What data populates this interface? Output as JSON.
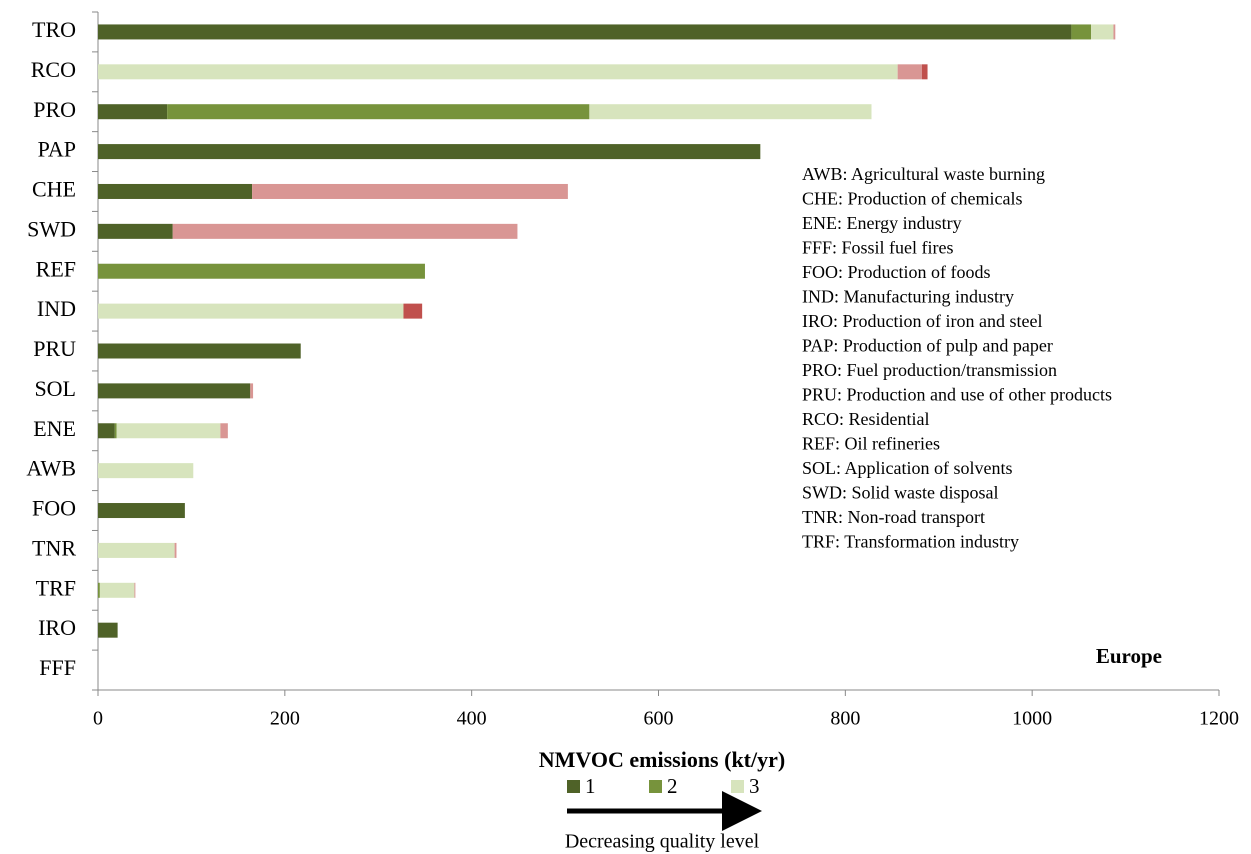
{
  "chart_data": {
    "type": "stacked-bar-horizontal",
    "x_label": "NMVOC emissions (kt/yr)",
    "annotation": "Europe",
    "arrow_label": "Decreasing quality level",
    "categories": [
      "TRO",
      "RCO",
      "PRO",
      "PAP",
      "CHE",
      "SWD",
      "REF",
      "IND",
      "PRU",
      "SOL",
      "ENE",
      "AWB",
      "FOO",
      "TNR",
      "TRF",
      "IRO",
      "FFF"
    ],
    "series": [
      {
        "name": "1",
        "color": "#4f6228",
        "values": [
          1042,
          0,
          74,
          709,
          165,
          80,
          0,
          0,
          217,
          163,
          18,
          0,
          93,
          0,
          0,
          21,
          0
        ]
      },
      {
        "name": "2",
        "color": "#77933c",
        "values": [
          21,
          0,
          452,
          0,
          0,
          0,
          350,
          0,
          0,
          0,
          2,
          0,
          0,
          0,
          2,
          0,
          0
        ]
      },
      {
        "name": "3",
        "color": "#d7e4bd",
        "values": [
          24,
          856,
          302,
          0,
          0,
          0,
          0,
          327,
          0,
          0,
          111,
          102,
          0,
          82,
          37,
          0,
          0
        ]
      },
      {
        "color": "#d99694",
        "values": [
          2,
          26,
          0,
          0,
          338,
          369,
          0,
          0,
          0,
          3,
          8,
          0,
          0,
          2,
          1,
          0,
          0
        ]
      },
      {
        "color": "#c0504d",
        "values": [
          0,
          6,
          0,
          0,
          0,
          0,
          0,
          20,
          0,
          0,
          0,
          0,
          0,
          0,
          0,
          0,
          0
        ]
      }
    ],
    "xlim": [
      0,
      1200
    ],
    "xticks": [
      0,
      200,
      400,
      600,
      800,
      1000,
      1200
    ],
    "grid": false,
    "notes": [
      "AWB: Agricultural waste burning",
      "CHE: Production of chemicals",
      "ENE: Energy industry",
      "FFF: Fossil fuel fires",
      "FOO: Production of foods",
      "IND: Manufacturing industry",
      "IRO: Production of iron and steel",
      "PAP: Production of pulp and paper",
      "PRO: Fuel production/transmission",
      "PRU: Production and use of other products",
      "RCO: Residential",
      "REF: Oil refineries",
      "SOL: Application of solvents",
      "SWD: Solid waste disposal",
      "TNR: Non-road transport",
      "TRF: Transformation industry"
    ]
  }
}
